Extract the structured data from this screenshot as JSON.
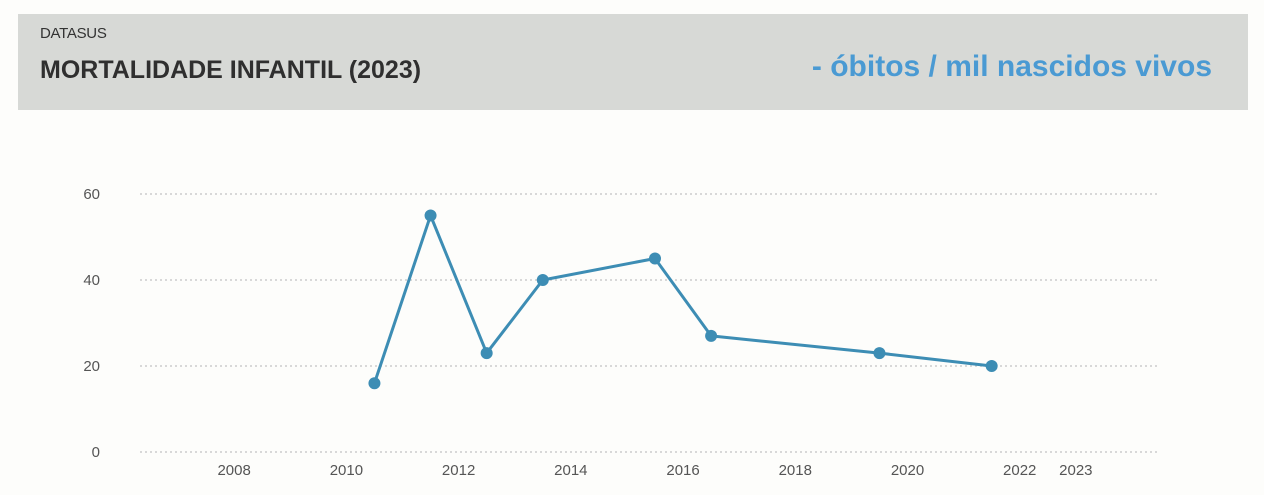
{
  "header": {
    "source": "DATASUS",
    "title": "MORTALIDADE INFANTIL (2023)",
    "unit": "- óbitos / mil nascidos vivos"
  },
  "colors": {
    "header_bg": "#d7d9d6",
    "accent": "#4a9ad3",
    "line": "#3d8db4",
    "grid": "#cccccc"
  },
  "chart_data": {
    "type": "line",
    "title": "MORTALIDADE INFANTIL (2023)",
    "subtitle": "- óbitos / mil nascidos vivos",
    "xlabel": "",
    "ylabel": "",
    "ylim": [
      0,
      60
    ],
    "yticks": [
      0,
      20,
      40,
      60
    ],
    "xlim": [
      2006.5,
      2024.5
    ],
    "xticks": [
      2008,
      2010,
      2012,
      2014,
      2016,
      2018,
      2020,
      2022,
      2023
    ],
    "grid": true,
    "legend": "none",
    "series": [
      {
        "x": [
          2010.5,
          2011.5,
          2012.5,
          2013.5,
          2015.5,
          2016.5,
          2019.5,
          2021.5
        ],
        "values": [
          16,
          55,
          23,
          40,
          45,
          27,
          23,
          20
        ]
      }
    ]
  }
}
